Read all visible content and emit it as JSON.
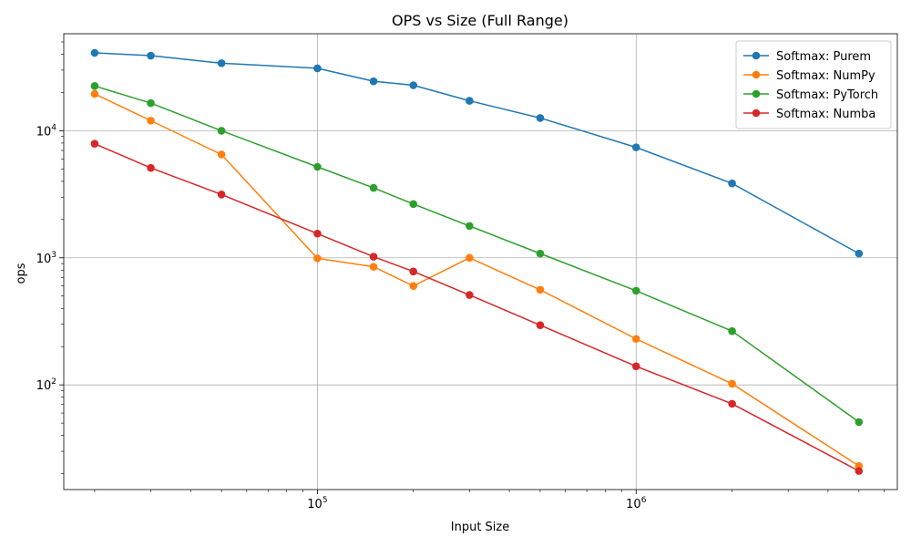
{
  "chart_data": {
    "type": "line",
    "title": "OPS vs Size (Full Range)",
    "xlabel": "Input Size",
    "ylabel": "ops",
    "xscale": "log",
    "yscale": "log",
    "xlim": [
      16000,
      6600000
    ],
    "ylim": [
      15,
      58000
    ],
    "grid": true,
    "legend_position": "top-right",
    "x_major_ticks": [
      {
        "value": 100000,
        "base": "10",
        "exp": "5"
      },
      {
        "value": 1000000,
        "base": "10",
        "exp": "6"
      }
    ],
    "y_major_ticks": [
      {
        "value": 100,
        "base": "10",
        "exp": "2"
      },
      {
        "value": 1000,
        "base": "10",
        "exp": "3"
      },
      {
        "value": 10000,
        "base": "10",
        "exp": "4"
      }
    ],
    "x": [
      20000,
      30000,
      50000,
      100000,
      150000,
      200000,
      300000,
      500000,
      1000000,
      2000000,
      5000000
    ],
    "series": [
      {
        "name": "Softmax: Purem",
        "color": "#1f77b4",
        "values": [
          41000,
          39000,
          34000,
          31000,
          24500,
          22800,
          17200,
          12600,
          7400,
          3850,
          1080
        ]
      },
      {
        "name": "Softmax: NumPy",
        "color": "#ff7f0e",
        "values": [
          19500,
          12000,
          6500,
          990,
          850,
          600,
          1000,
          560,
          230,
          102,
          23
        ]
      },
      {
        "name": "Softmax: PyTorch",
        "color": "#2ca02c",
        "values": [
          22500,
          16500,
          10000,
          5200,
          3550,
          2650,
          1780,
          1080,
          550,
          265,
          51
        ]
      },
      {
        "name": "Softmax: Numba",
        "color": "#d62728",
        "values": [
          7900,
          5100,
          3150,
          1550,
          1020,
          780,
          510,
          295,
          140,
          71,
          21
        ]
      }
    ]
  }
}
